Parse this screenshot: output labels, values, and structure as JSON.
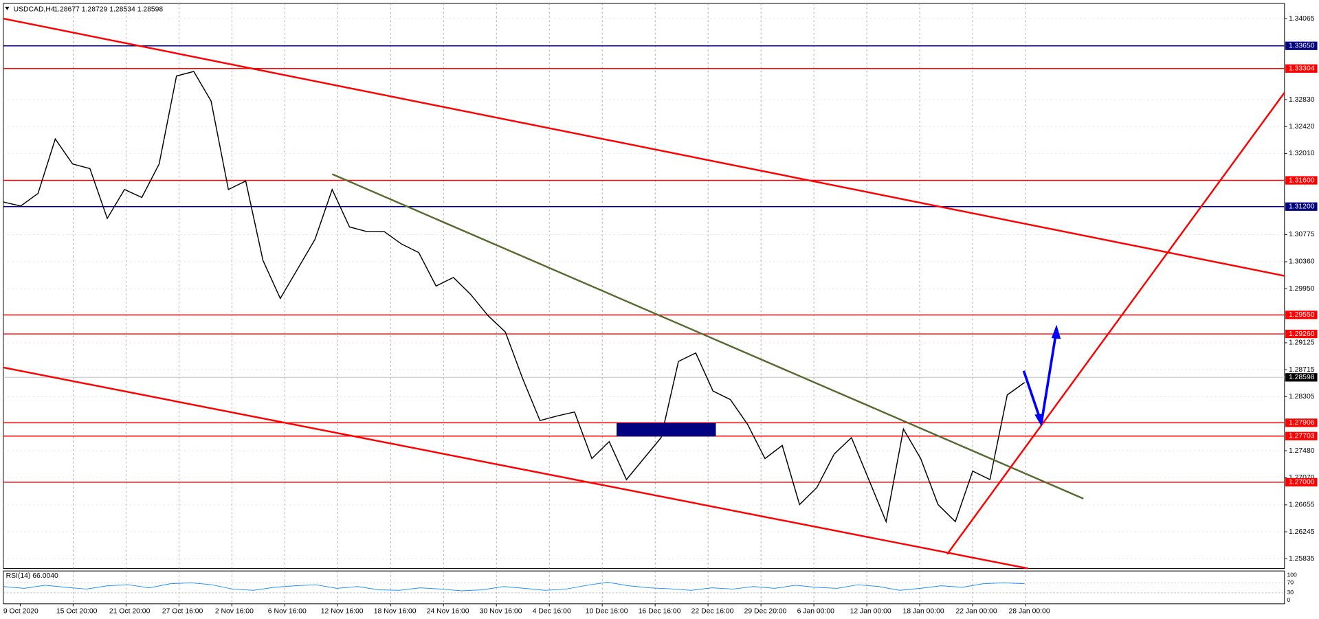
{
  "chart_data": {
    "type": "line",
    "title": "USDCAD,H4",
    "quote": "1.28677 1.28729 1.28534 1.28598",
    "color": "#000000",
    "time_labels": [
      "9 Oct 2020",
      "15 Oct 20:00",
      "21 Oct 20:00",
      "27 Oct 16:00",
      "2 Nov 16:00",
      "6 Nov 16:00",
      "12 Nov 16:00",
      "18 Nov 16:00",
      "24 Nov 16:00",
      "30 Nov 16:00",
      "4 Dec 16:00",
      "10 Dec 16:00",
      "16 Dec 16:00",
      "22 Dec 16:00",
      "29 Dec 20:00",
      "6 Jan 00:00",
      "12 Jan 00:00",
      "18 Jan 00:00",
      "22 Jan 00:00",
      "28 Jan 00:00"
    ],
    "values": [
      1.3127,
      1.3121,
      1.314,
      1.3223,
      1.3185,
      1.3178,
      1.3102,
      1.3146,
      1.3134,
      1.3185,
      1.3319,
      1.3326,
      1.3281,
      1.3146,
      1.3159,
      1.3038,
      1.298,
      1.3025,
      1.307,
      1.3146,
      1.3089,
      1.3082,
      1.3082,
      1.3063,
      1.305,
      1.2999,
      1.3012,
      1.2986,
      1.2954,
      1.2929,
      1.2858,
      1.2794,
      1.2801,
      1.2807,
      1.2736,
      1.2762,
      1.2704,
      1.2736,
      1.2768,
      1.2884,
      1.2897,
      1.2839,
      1.2826,
      1.2788,
      1.2736,
      1.2756,
      1.2666,
      1.2692,
      1.2743,
      1.2768,
      1.2704,
      1.264,
      1.2781,
      1.2736,
      1.2666,
      1.264,
      1.2717,
      1.2704,
      1.2833,
      1.2852
    ],
    "ylim": [
      1.25686,
      1.34296
    ],
    "yticks": [
      1.34065,
      {
        "value": 1.3283,
        "label": "1.32830"
      },
      {
        "value": 1.3242,
        "label": "1.32420"
      },
      {
        "value": 1.3201,
        "label": "1.32010"
      },
      1.30775,
      {
        "value": 1.3036,
        "label": "1.30360"
      },
      {
        "value": 1.2995,
        "label": "1.29950"
      },
      1.29125,
      1.28715,
      1.28305,
      {
        "value": 1.2748,
        "label": "1.27480"
      },
      {
        "value": 1.2707,
        "label": "1.27070"
      },
      1.26655,
      1.26245,
      1.25835
    ],
    "grid": true,
    "levels": [
      {
        "value": 1.3365,
        "label": "1.33650",
        "color": "#000080"
      },
      {
        "value": 1.33304,
        "label": "1.33304",
        "color": "#ff0000"
      },
      {
        "value": 1.316,
        "label": "1.31600",
        "color": "#ff0000"
      },
      {
        "value": 1.312,
        "label": "1.31200",
        "color": "#000080"
      },
      {
        "value": 1.2955,
        "label": "1.29550",
        "color": "#ff0000"
      },
      {
        "value": 1.2926,
        "label": "1.29260",
        "color": "#ff0000"
      },
      {
        "value": 1.27906,
        "label": "1.27906",
        "color": "#ff0000"
      },
      {
        "value": 1.27703,
        "label": "1.27703",
        "color": "#ff0000"
      },
      {
        "value": 1.27,
        "label": "1.27000",
        "color": "#ff0000"
      }
    ],
    "last_price": {
      "value": 1.28598,
      "label": "1.28598",
      "color": "#c0c0c0"
    },
    "rsi": {
      "title": "RSI(14) 66.0040",
      "color": "#1e90ff",
      "ylim": [
        0,
        100
      ],
      "yticks": [
        100,
        70,
        30,
        0
      ],
      "values": [
        55,
        48,
        60,
        52,
        45,
        58,
        62,
        50,
        66,
        70,
        62,
        45,
        40,
        52,
        58,
        62,
        48,
        55,
        42,
        40,
        50,
        45,
        38,
        42,
        55,
        48,
        40,
        45,
        60,
        72,
        58,
        50,
        46,
        40,
        50,
        45,
        55,
        48,
        60,
        52,
        48,
        62,
        55,
        40,
        48,
        58,
        52,
        66,
        70,
        66
      ]
    }
  }
}
